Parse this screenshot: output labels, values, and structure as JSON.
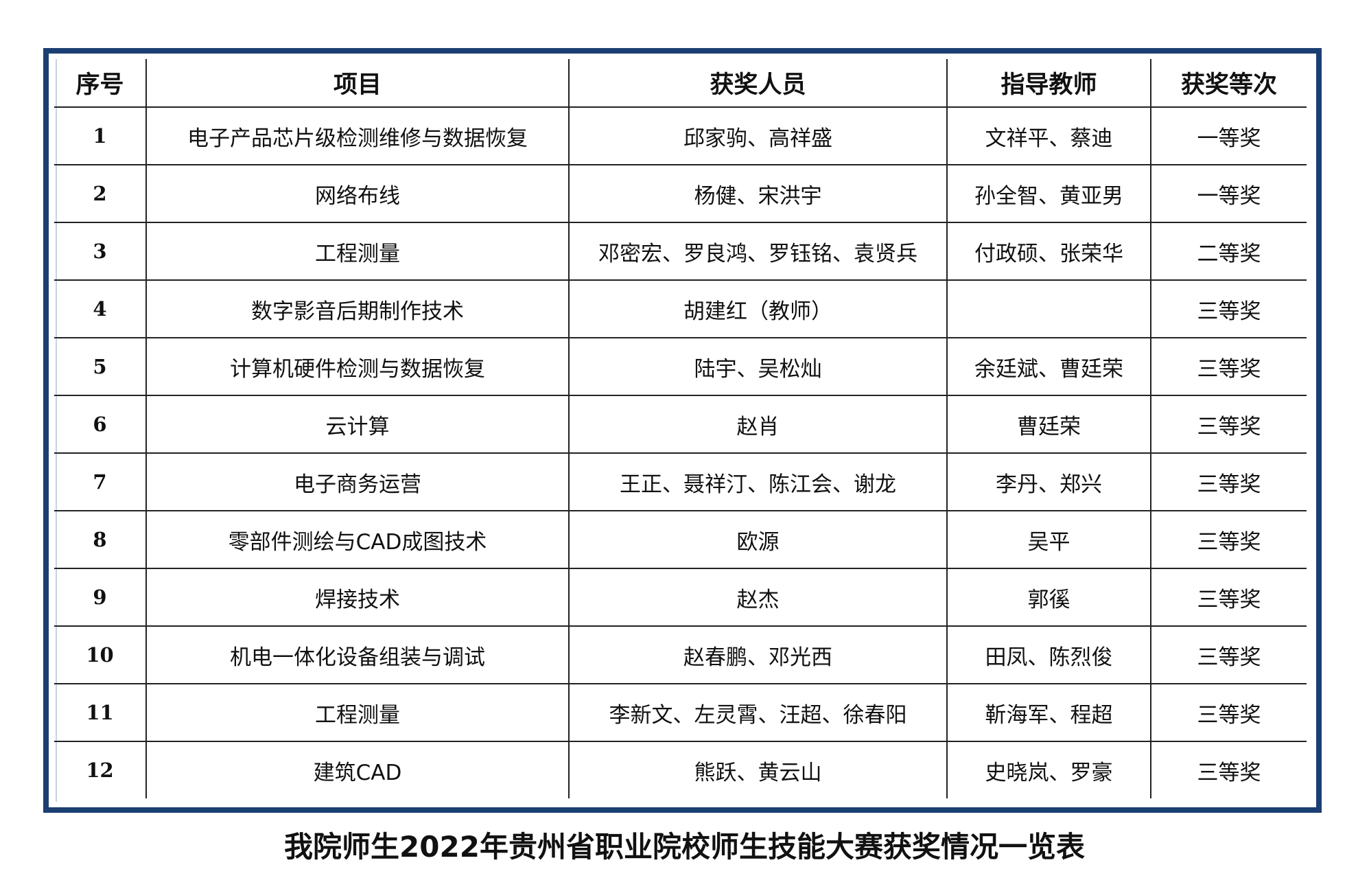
{
  "table": {
    "headers": [
      "序号",
      "项目",
      "获奖人员",
      "指导教师",
      "获奖等次"
    ],
    "rows": [
      [
        "1",
        "电子产品芯片级检测维修与数据恢复",
        "邱家驹、高祥盛",
        "文祥平、蔡迪",
        "一等奖"
      ],
      [
        "2",
        "网络布线",
        "杨健、宋洪宇",
        "孙全智、黄亚男",
        "一等奖"
      ],
      [
        "3",
        "工程测量",
        "邓密宏、罗良鸿、罗钰铭、袁贤兵",
        "付政硕、张荣华",
        "二等奖"
      ],
      [
        "4",
        "数字影音后期制作技术",
        "胡建红（教师）",
        "",
        "三等奖"
      ],
      [
        "5",
        "计算机硬件检测与数据恢复",
        "陆宇、吴松灿",
        "余廷斌、曹廷荣",
        "三等奖"
      ],
      [
        "6",
        "云计算",
        "赵肖",
        "曹廷荣",
        "三等奖"
      ],
      [
        "7",
        "电子商务运营",
        "王正、聂祥汀、陈江会、谢龙",
        "李丹、郑兴",
        "三等奖"
      ],
      [
        "8",
        "零部件测绘与CAD成图技术",
        "欧源",
        "吴平",
        "三等奖"
      ],
      [
        "9",
        "焊接技术",
        "赵杰",
        "郭徯",
        "三等奖"
      ],
      [
        "10",
        "机电一体化设备组装与调试",
        "赵春鹏、邓光西",
        "田凤、陈烈俊",
        "三等奖"
      ],
      [
        "11",
        "工程测量",
        "李新文、左灵霄、汪超、徐春阳",
        "靳海军、程超",
        "三等奖"
      ],
      [
        "12",
        "建筑CAD",
        "熊跃、黄云山",
        "史晓岚、罗豪",
        "三等奖"
      ]
    ]
  },
  "caption": "我院师生2022年贵州省职业院校师生技能大赛获奖情况一览表",
  "colors": {
    "frame": "#1b3f73",
    "grid": "#222222"
  }
}
